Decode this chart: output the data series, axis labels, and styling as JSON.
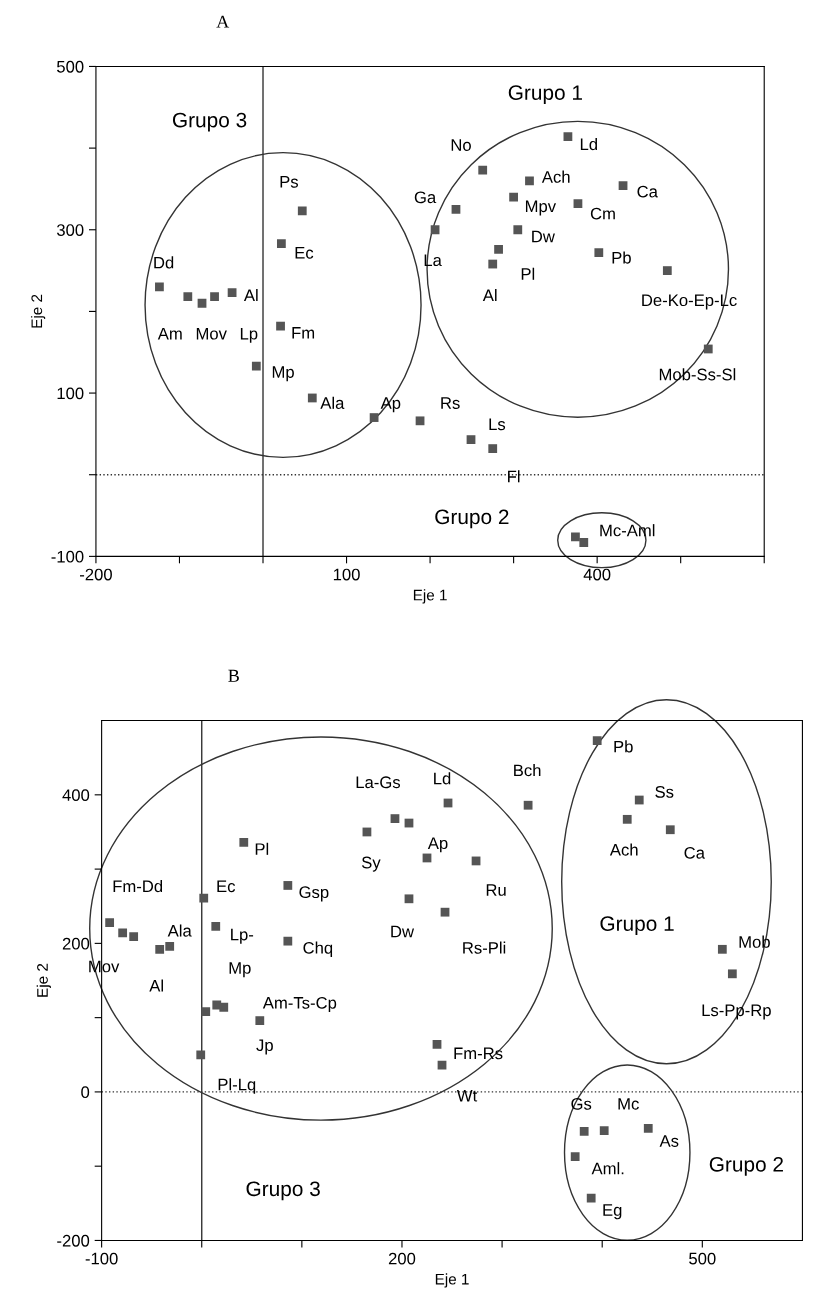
{
  "chart_data": [
    {
      "type": "scatter",
      "title": "A",
      "xlabel": "Eje 1",
      "ylabel": "Eje 2",
      "marker": "square",
      "grid": false,
      "legend": false,
      "xlim": [
        -200,
        600
      ],
      "ylim": [
        -100,
        500
      ],
      "xticks": [
        -200,
        {
          "value": -100,
          "label": null
        },
        {
          "value": 0,
          "label": null
        },
        100,
        {
          "value": 200,
          "label": null
        },
        {
          "value": 300,
          "label": null
        },
        400,
        {
          "value": 500,
          "label": null
        },
        {
          "value": 600,
          "label": null
        }
      ],
      "yticks": [
        -100,
        {
          "value": 0,
          "label": null
        },
        100,
        {
          "value": 200,
          "label": null
        },
        300,
        {
          "value": 400,
          "label": null
        },
        500
      ],
      "ref_lines": [
        {
          "axis": "x",
          "value": 0,
          "label": null,
          "color": "#333333",
          "line_style": "solid"
        },
        {
          "axis": "y",
          "value": 0,
          "label": null,
          "color": "#333333",
          "line_style": "dotted"
        }
      ],
      "series": [
        {
          "color": "#555555",
          "x": [
            47,
            22,
            -124,
            -90,
            -73,
            -58,
            -37,
            21,
            -8,
            59,
            133,
            188,
            249,
            275,
            263,
            231,
            206,
            282,
            275,
            319,
            300,
            305,
            365,
            377,
            431,
            402,
            484,
            533,
            374,
            384
          ],
          "values": [
            323,
            283,
            230,
            218,
            210,
            218,
            223,
            182,
            133,
            94,
            70,
            66,
            43,
            32,
            373,
            325,
            300,
            276,
            258,
            360,
            340,
            300,
            414,
            332,
            354,
            272,
            250,
            154,
            -76,
            -83
          ]
        }
      ],
      "annotations": [
        "Grupo 3",
        "Grupo 1",
        "Grupo 2",
        {
          "text": "Ps",
          "x": 47,
          "y": 323
        },
        {
          "text": "Ec",
          "x": 22,
          "y": 283
        },
        {
          "text": "Dd",
          "x": -124,
          "y": 230
        },
        {
          "text": "Am",
          "x": -90,
          "y": 218
        },
        {
          "text": "Mov",
          "x": -73,
          "y": 210
        },
        {
          "text": "Lp",
          "x": -58,
          "y": 218
        },
        {
          "text": "Al",
          "x": -37,
          "y": 223
        },
        {
          "text": "Fm",
          "x": 21,
          "y": 182
        },
        {
          "text": "Mp",
          "x": -8,
          "y": 133
        },
        {
          "text": "Ala",
          "x": 59,
          "y": 94
        },
        {
          "text": "Ap",
          "x": 133,
          "y": 70
        },
        {
          "text": "Rs",
          "x": 188,
          "y": 66
        },
        {
          "text": "Ls",
          "x": 249,
          "y": 43
        },
        {
          "text": "Fl",
          "x": 275,
          "y": 32
        },
        {
          "text": "No",
          "x": 263,
          "y": 373
        },
        {
          "text": "Ga",
          "x": 231,
          "y": 325
        },
        {
          "text": "La",
          "x": 206,
          "y": 300
        },
        {
          "text": "Pl",
          "x": 282,
          "y": 276
        },
        {
          "text": "Al",
          "x": 275,
          "y": 258
        },
        {
          "text": "Ach",
          "x": 319,
          "y": 360
        },
        {
          "text": "Mpv",
          "x": 300,
          "y": 340
        },
        {
          "text": "Dw",
          "x": 305,
          "y": 300
        },
        {
          "text": "Ld",
          "x": 365,
          "y": 414
        },
        {
          "text": "Cm",
          "x": 377,
          "y": 332
        },
        {
          "text": "Ca",
          "x": 431,
          "y": 354
        },
        {
          "text": "Pb",
          "x": 402,
          "y": 272
        },
        {
          "text": "De-Ko-Ep-Lc",
          "x": 484,
          "y": 250
        },
        {
          "text": "Mob-Ss-Sl",
          "x": 533,
          "y": 154
        },
        {
          "text": "Mc-Aml",
          "x": 374,
          "y": -76
        }
      ]
    },
    {
      "type": "scatter",
      "title": "B",
      "xlabel": "Eje 1",
      "ylabel": "Eje 2",
      "marker": "square",
      "grid": false,
      "legend": false,
      "xlim": [
        -100,
        600
      ],
      "ylim": [
        -200,
        500
      ],
      "xticks": [
        -100,
        {
          "value": 0,
          "label": null
        },
        {
          "value": 100,
          "label": null
        },
        200,
        {
          "value": 300,
          "label": null
        },
        {
          "value": 400,
          "label": null
        },
        500
      ],
      "yticks": [
        -200,
        {
          "value": -100,
          "label": null
        },
        0,
        {
          "value": 100,
          "label": null
        },
        200,
        {
          "value": 300,
          "label": null
        },
        400
      ],
      "ref_lines": [
        {
          "axis": "x",
          "value": 0,
          "label": null,
          "color": "#333333",
          "line_style": "solid"
        },
        {
          "axis": "y",
          "value": 0,
          "label": null,
          "color": "#333333",
          "line_style": "dotted"
        }
      ],
      "series": [
        {
          "color": "#555555",
          "x": [
            -92,
            -79,
            -68,
            -42,
            -32,
            2,
            14,
            42,
            86,
            86,
            4,
            15,
            22,
            58,
            -1,
            165,
            193,
            207,
            246,
            326,
            225,
            274,
            207,
            243,
            235,
            240,
            395,
            437,
            425,
            468,
            520,
            530,
            382,
            402,
            446,
            373,
            389
          ],
          "values": [
            228,
            214,
            209,
            192,
            196,
            261,
            223,
            336,
            278,
            203,
            108,
            117,
            114,
            96,
            50,
            350,
            368,
            362,
            389,
            386,
            315,
            311,
            260,
            242,
            64,
            36,
            473,
            393,
            367,
            353,
            192,
            159,
            -53,
            -52,
            -49,
            -87,
            -143
          ]
        }
      ],
      "annotations": [
        "Grupo 3",
        "Grupo 1",
        "Grupo 2",
        {
          "text": "Fm-Dd",
          "x": -79,
          "y": 214
        },
        {
          "text": "Mov",
          "x": -92,
          "y": 228
        },
        {
          "text": "Ala",
          "x": -32,
          "y": 196
        },
        {
          "text": "Al",
          "x": -42,
          "y": 192
        },
        {
          "text": "Ec",
          "x": 2,
          "y": 261
        },
        {
          "text": "Lp-",
          "x": 14,
          "y": 223
        },
        {
          "text": "Mp",
          "x": 14,
          "y": 223
        },
        {
          "text": "Pl",
          "x": 42,
          "y": 336
        },
        {
          "text": "Gsp",
          "x": 86,
          "y": 278
        },
        {
          "text": "Chq",
          "x": 86,
          "y": 203
        },
        {
          "text": "Am-Ts-Cp",
          "x": 22,
          "y": 114
        },
        {
          "text": "Jp",
          "x": 58,
          "y": 96
        },
        {
          "text": "Pl-Lq",
          "x": -1,
          "y": 50
        },
        {
          "text": "La-Gs",
          "x": 193,
          "y": 368
        },
        {
          "text": "Sy",
          "x": 165,
          "y": 350
        },
        {
          "text": "Dw",
          "x": 207,
          "y": 260
        },
        {
          "text": "Ld",
          "x": 246,
          "y": 389
        },
        {
          "text": "Bch",
          "x": 326,
          "y": 386
        },
        {
          "text": "Ap",
          "x": 225,
          "y": 315
        },
        {
          "text": "Ru",
          "x": 274,
          "y": 311
        },
        {
          "text": "Rs-Pli",
          "x": 243,
          "y": 242
        },
        {
          "text": "Fm-Rs",
          "x": 235,
          "y": 64
        },
        {
          "text": "Wt",
          "x": 240,
          "y": 36
        },
        {
          "text": "Pb",
          "x": 395,
          "y": 473
        },
        {
          "text": "Ss",
          "x": 437,
          "y": 393
        },
        {
          "text": "Ach",
          "x": 425,
          "y": 367
        },
        {
          "text": "Ca",
          "x": 468,
          "y": 353
        },
        {
          "text": "Mob",
          "x": 520,
          "y": 192
        },
        {
          "text": "Ls-Pp-Rp",
          "x": 530,
          "y": 159
        },
        {
          "text": "Gs",
          "x": 382,
          "y": -53
        },
        {
          "text": "Mc",
          "x": 402,
          "y": -52
        },
        {
          "text": "As",
          "x": 446,
          "y": -49
        },
        {
          "text": "Aml.",
          "x": 373,
          "y": -87
        },
        {
          "text": "Eg",
          "x": 389,
          "y": -143
        }
      ]
    }
  ]
}
